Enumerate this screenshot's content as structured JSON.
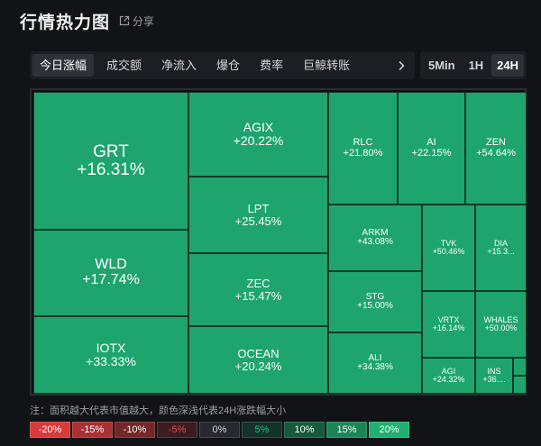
{
  "header": {
    "title": "行情热力图",
    "share_label": "分享"
  },
  "tabs": [
    {
      "label": "今日涨幅",
      "active": true
    },
    {
      "label": "成交额",
      "active": false
    },
    {
      "label": "净流入",
      "active": false
    },
    {
      "label": "爆仓",
      "active": false
    },
    {
      "label": "费率",
      "active": false
    },
    {
      "label": "巨鲸转账",
      "active": false
    },
    {
      "label": "",
      "active": false
    }
  ],
  "time_filters": [
    {
      "label": "5Min",
      "active": false
    },
    {
      "label": "1H",
      "active": false
    },
    {
      "label": "24H",
      "active": true
    }
  ],
  "heatmap": {
    "tile_color": "#1ea56e",
    "tiles": [
      {
        "symbol": "GRT",
        "change": "+16.31%"
      },
      {
        "symbol": "WLD",
        "change": "+17.74%"
      },
      {
        "symbol": "IOTX",
        "change": "+33.33%"
      },
      {
        "symbol": "AGIX",
        "change": "+20.22%"
      },
      {
        "symbol": "LPT",
        "change": "+25.45%"
      },
      {
        "symbol": "ZEC",
        "change": "+15.47%"
      },
      {
        "symbol": "OCEAN",
        "change": "+20.24%"
      },
      {
        "symbol": "RLC",
        "change": "+21.80%"
      },
      {
        "symbol": "AI",
        "change": "+22.15%"
      },
      {
        "symbol": "ZEN",
        "change": "+54.64%"
      },
      {
        "symbol": "ARKM",
        "change": "+43.08%"
      },
      {
        "symbol": "STG",
        "change": "+15.00%"
      },
      {
        "symbol": "ALI",
        "change": "+34.38%"
      },
      {
        "symbol": "TVK",
        "change": "+50.46%"
      },
      {
        "symbol": "DIA",
        "change": "+15.3..."
      },
      {
        "symbol": "VRTX",
        "change": "+16.14%"
      },
      {
        "symbol": "WHALES",
        "change": "+50.00%"
      },
      {
        "symbol": "AGI",
        "change": "+24.32%"
      },
      {
        "symbol": "INS",
        "change": "+36...."
      },
      {
        "symbol": "",
        "change": ""
      },
      {
        "symbol": "",
        "change": ""
      }
    ]
  },
  "footer": {
    "note": "注：面积越大代表市值越大，颜色深浅代表24H涨跌幅大小",
    "legend": [
      {
        "label": "-20%",
        "bg": "#d93a3a",
        "fg": "#ffffff"
      },
      {
        "label": "-15%",
        "bg": "#a83133",
        "fg": "#ffffff"
      },
      {
        "label": "-10%",
        "bg": "#742728",
        "fg": "#ffffff"
      },
      {
        "label": "-5%",
        "bg": "#3b1d20",
        "fg": "#e04a4a"
      },
      {
        "label": "0%",
        "bg": "#262930",
        "fg": "#d4d5d8"
      },
      {
        "label": "5%",
        "bg": "#14322a",
        "fg": "#23c47c"
      },
      {
        "label": "10%",
        "bg": "#155a3d",
        "fg": "#ffffff"
      },
      {
        "label": "15%",
        "bg": "#1a8657",
        "fg": "#ffffff"
      },
      {
        "label": "20%",
        "bg": "#1fb16f",
        "fg": "#ffffff"
      }
    ]
  }
}
